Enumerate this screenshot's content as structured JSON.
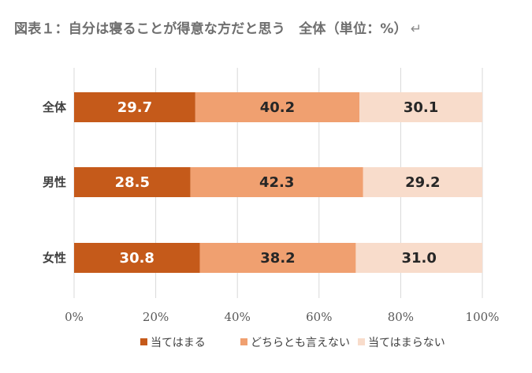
{
  "chart_data": {
    "type": "bar",
    "orientation": "horizontal",
    "stacked": "100%",
    "title": "図表１：自分は寝ることが得意な方だと思う　全体（単位：%）",
    "title_mark": "↵",
    "categories": [
      "全体",
      "男性",
      "女性"
    ],
    "series": [
      {
        "name": "当てはまる",
        "values": [
          29.7,
          28.5,
          30.8
        ],
        "labels": [
          "29.7",
          "28.5",
          "30.8"
        ],
        "color": "#c55a1a",
        "label_color": "#ffffff"
      },
      {
        "name": "どちらとも言えない",
        "values": [
          40.2,
          42.3,
          38.2
        ],
        "labels": [
          "40.2",
          "42.3",
          "38.2"
        ],
        "color": "#f0a070",
        "label_color": "#262626"
      },
      {
        "name": "当てはまらない",
        "values": [
          30.1,
          29.2,
          31.0
        ],
        "labels": [
          "30.1",
          "29.2",
          "31.0"
        ],
        "color": "#f8dccb",
        "label_color": "#262626"
      }
    ],
    "xlim": [
      0,
      100
    ],
    "xticks": [
      0,
      20,
      40,
      60,
      80,
      100
    ],
    "xtick_labels": [
      "0%",
      "20%",
      "40%",
      "60%",
      "80%",
      "100%"
    ],
    "grid": true,
    "legend": "bottom",
    "colors": {
      "grid": "#d9d9d9"
    }
  }
}
